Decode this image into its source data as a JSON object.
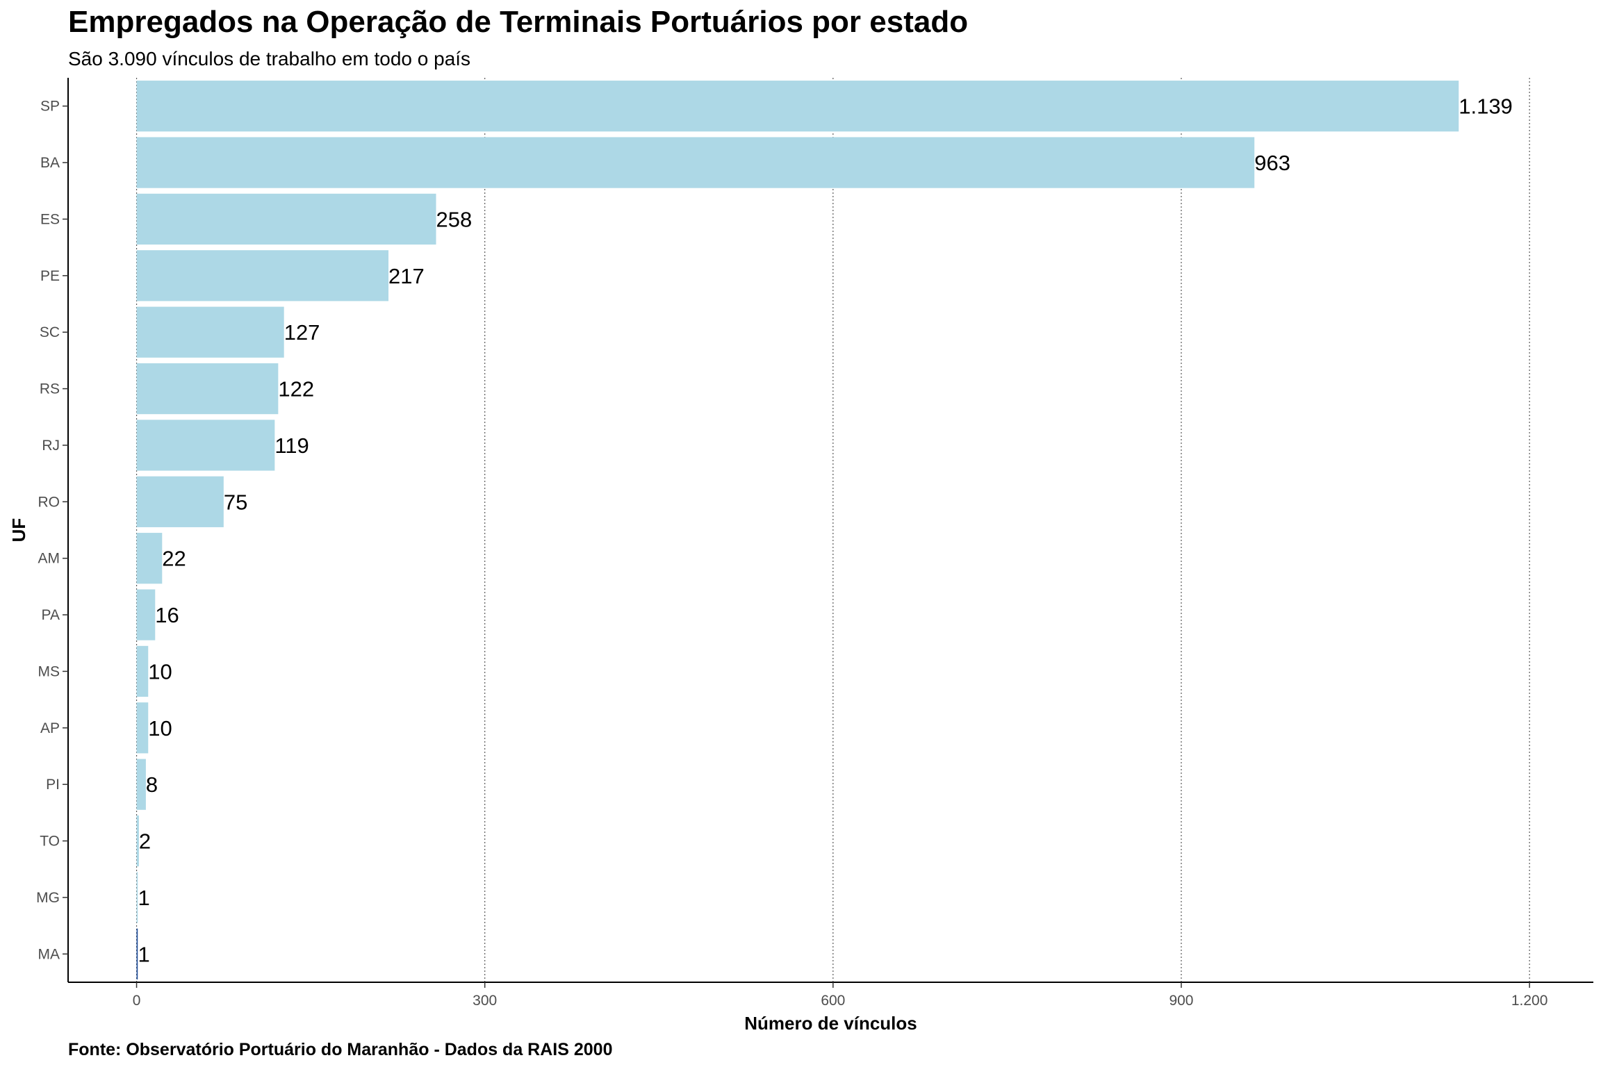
{
  "chart_data": {
    "type": "bar",
    "orientation": "horizontal",
    "title": "Empregados na Operação de Terminais Portuários por estado",
    "subtitle": "São 3.090 vínculos de trabalho em todo o país",
    "xlabel": "Número de vínculos",
    "ylabel": "UF",
    "caption": "Fonte: Observatório Portuário do Maranhão - Dados da RAIS 2000",
    "categories": [
      "SP",
      "BA",
      "ES",
      "PE",
      "SC",
      "RS",
      "RJ",
      "RO",
      "AM",
      "PA",
      "MS",
      "AP",
      "PI",
      "TO",
      "MG",
      "MA"
    ],
    "values": [
      1139,
      963,
      258,
      217,
      127,
      122,
      119,
      75,
      22,
      16,
      10,
      10,
      8,
      2,
      1,
      1
    ],
    "value_labels": [
      "1.139",
      "963",
      "258",
      "217",
      "127",
      "122",
      "119",
      "75",
      "22",
      "16",
      "10",
      "10",
      "8",
      "2",
      "1",
      "1"
    ],
    "xlim": [
      -59,
      1255
    ],
    "x_ticks": [
      0,
      300,
      600,
      900,
      1200
    ],
    "x_tick_labels": [
      "0",
      "300",
      "600",
      "900",
      "1.200"
    ],
    "grid": "vertical dotted",
    "legend": "none",
    "colors": {
      "bar": "#ADD8E6",
      "bar_highlight": "#1F4E9A",
      "text": "#000000",
      "tick_text": "#4d4d4d"
    },
    "highlight_category": "MA"
  }
}
